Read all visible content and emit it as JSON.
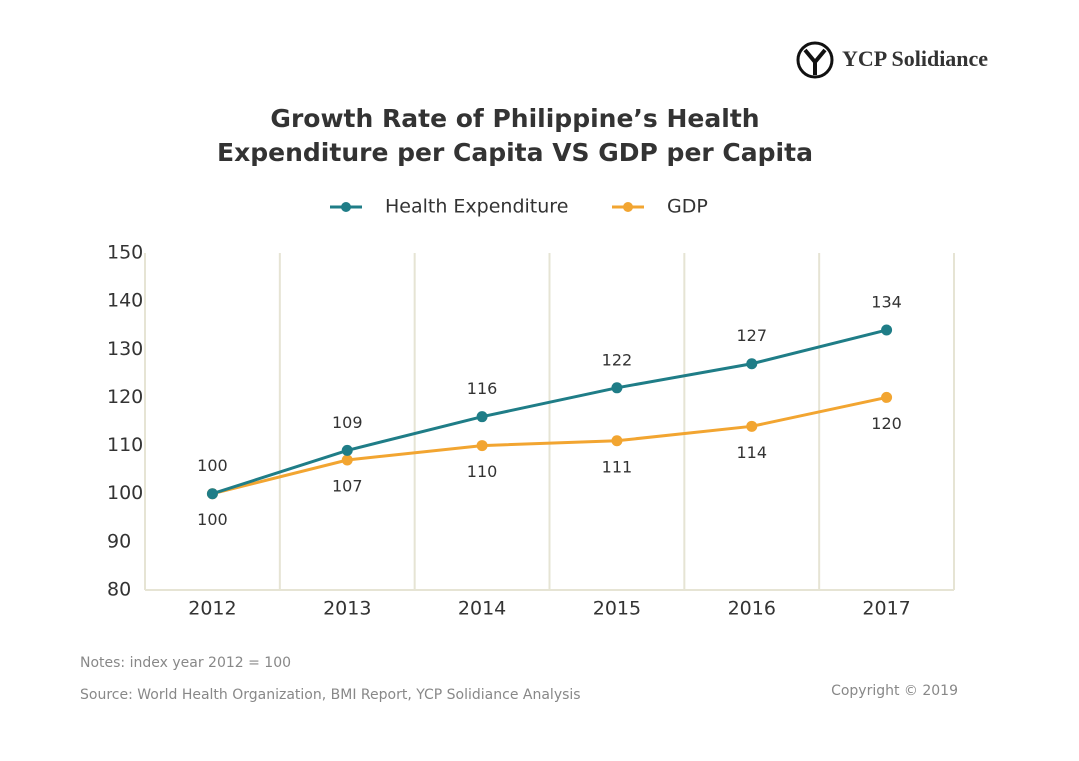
{
  "logo": "YCP Solidiance",
  "chart_data": {
    "type": "line",
    "title": [
      "Growth Rate of Philippine’s Health",
      "Expenditure per Capita VS GDP per Capita"
    ],
    "categories": [
      "2012",
      "2013",
      "2014",
      "2015",
      "2016",
      "2017"
    ],
    "series": [
      {
        "name": "Health Expenditure",
        "color": "#1f7d87",
        "values": [
          100,
          109,
          116,
          122,
          127,
          134
        ],
        "label_side": "above"
      },
      {
        "name": "GDP",
        "color": "#f2a531",
        "values": [
          100,
          107,
          110,
          111,
          114,
          120
        ],
        "label_side": "below"
      }
    ],
    "ylim": [
      80,
      150
    ],
    "yticks": [
      80,
      90,
      100,
      110,
      120,
      130,
      140,
      150
    ],
    "grid": false
  },
  "notes": "Notes: index year 2012 = 100",
  "source": "Source: World Health Organization, BMI Report, YCP Solidiance Analysis",
  "copyright": "Copyright © 2019"
}
